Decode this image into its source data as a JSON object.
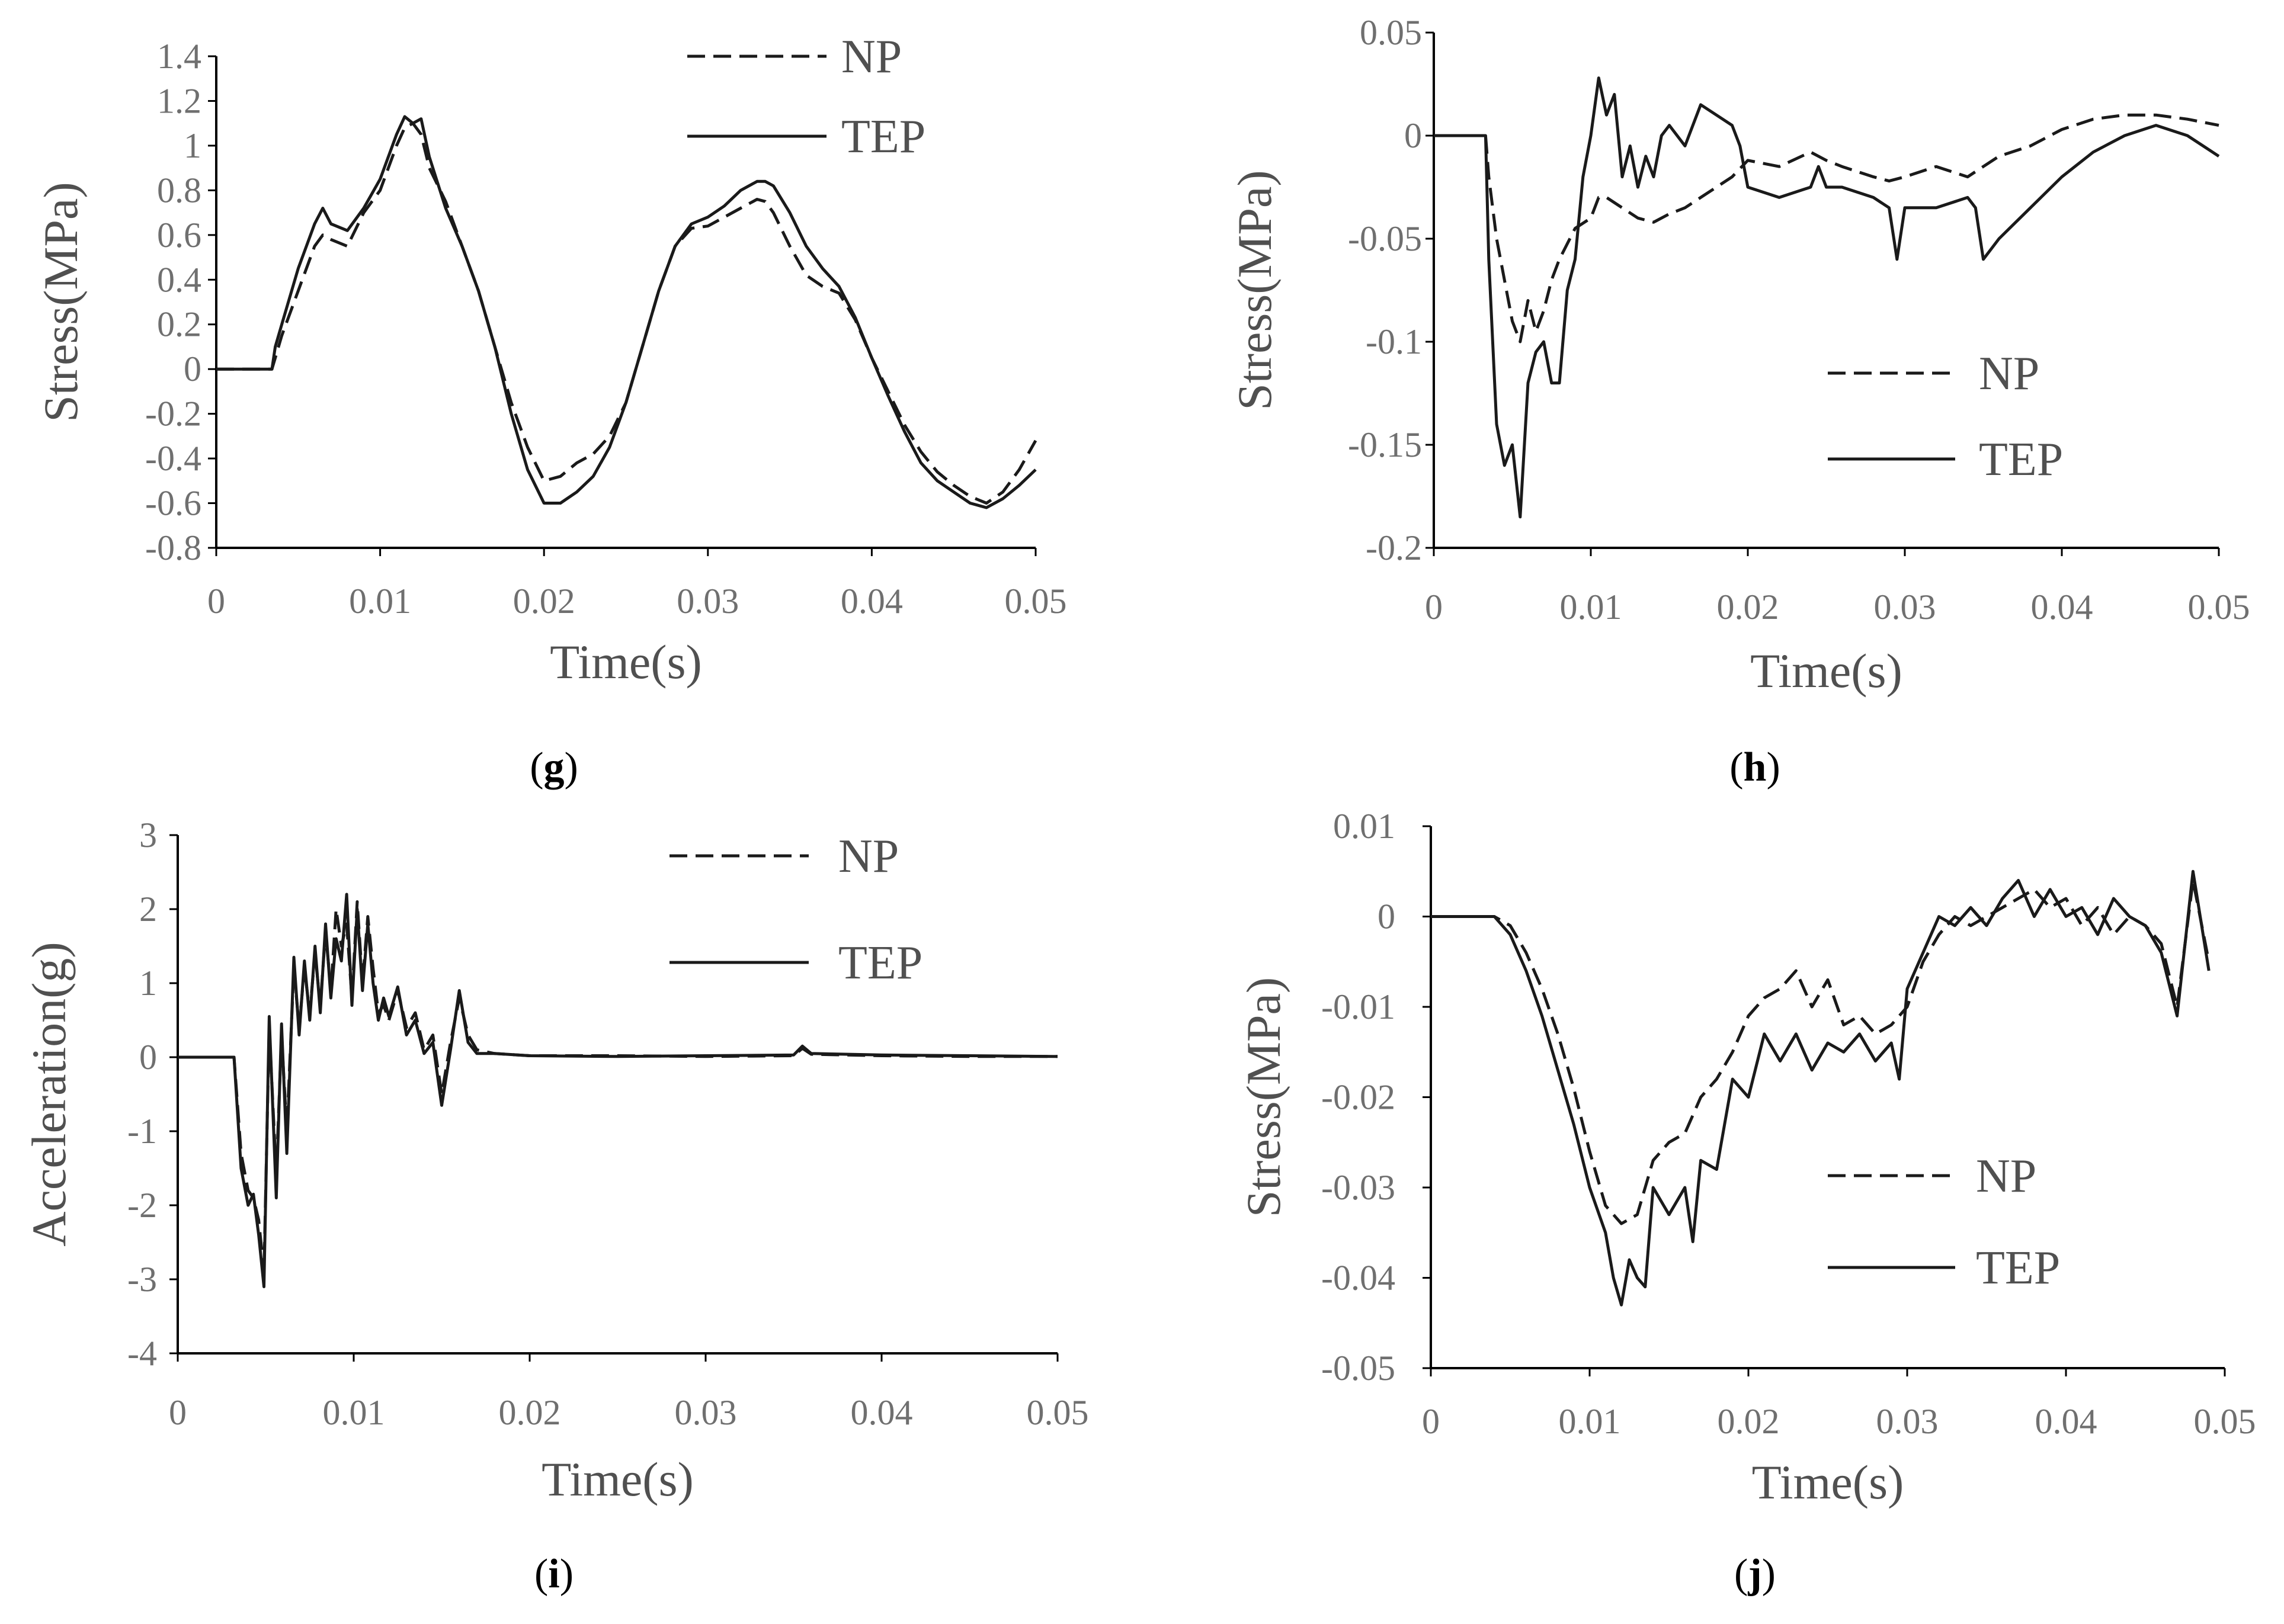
{
  "chart_data": [
    {
      "type": "line",
      "panel": "g",
      "xlabel": "Time(s)",
      "ylabel": "Stress(MPa)",
      "xlim": [
        0,
        0.05
      ],
      "ylim": [
        -0.8,
        1.4
      ],
      "xticks": [
        "0",
        "0.01",
        "0.02",
        "0.03",
        "0.04",
        "0.05"
      ],
      "yticks": [
        "1.4",
        "1.2",
        "1",
        "0.8",
        "0.6",
        "0.4",
        "0.2",
        "0",
        "-0.2",
        "-0.4",
        "-0.6",
        "-0.8"
      ],
      "legend": "top-center",
      "series": [
        {
          "name": "NP",
          "style": "dashed",
          "x": [
            0,
            0.0034,
            0.0036,
            0.004,
            0.005,
            0.006,
            0.0065,
            0.007,
            0.008,
            0.009,
            0.01,
            0.011,
            0.0115,
            0.012,
            0.0125,
            0.013,
            0.014,
            0.015,
            0.016,
            0.017,
            0.018,
            0.019,
            0.02,
            0.021,
            0.022,
            0.023,
            0.024,
            0.025,
            0.026,
            0.027,
            0.028,
            0.029,
            0.03,
            0.031,
            0.032,
            0.033,
            0.0335,
            0.034,
            0.035,
            0.036,
            0.037,
            0.038,
            0.039,
            0.04,
            0.041,
            0.042,
            0.043,
            0.044,
            0.045,
            0.046,
            0.047,
            0.048,
            0.049,
            0.05
          ],
          "y": [
            0,
            0,
            0.05,
            0.15,
            0.35,
            0.55,
            0.6,
            0.58,
            0.55,
            0.7,
            0.8,
            1.0,
            1.08,
            1.1,
            1.05,
            0.9,
            0.75,
            0.55,
            0.35,
            0.1,
            -0.15,
            -0.35,
            -0.5,
            -0.48,
            -0.42,
            -0.38,
            -0.3,
            -0.15,
            0.1,
            0.35,
            0.55,
            0.63,
            0.64,
            0.68,
            0.72,
            0.76,
            0.75,
            0.7,
            0.55,
            0.42,
            0.37,
            0.34,
            0.22,
            0.05,
            -0.1,
            -0.25,
            -0.37,
            -0.46,
            -0.52,
            -0.57,
            -0.6,
            -0.55,
            -0.45,
            -0.32
          ]
        },
        {
          "name": "TEP",
          "style": "solid",
          "x": [
            0,
            0.0034,
            0.0036,
            0.004,
            0.005,
            0.006,
            0.0065,
            0.007,
            0.008,
            0.009,
            0.01,
            0.011,
            0.0115,
            0.012,
            0.0125,
            0.013,
            0.014,
            0.015,
            0.016,
            0.017,
            0.018,
            0.019,
            0.02,
            0.021,
            0.022,
            0.023,
            0.024,
            0.025,
            0.026,
            0.027,
            0.028,
            0.029,
            0.03,
            0.031,
            0.032,
            0.033,
            0.0335,
            0.034,
            0.035,
            0.036,
            0.037,
            0.038,
            0.039,
            0.04,
            0.041,
            0.042,
            0.043,
            0.044,
            0.045,
            0.046,
            0.047,
            0.048,
            0.049,
            0.05
          ],
          "y": [
            0,
            0,
            0.1,
            0.2,
            0.45,
            0.65,
            0.72,
            0.65,
            0.62,
            0.72,
            0.85,
            1.05,
            1.13,
            1.1,
            1.12,
            0.95,
            0.72,
            0.55,
            0.35,
            0.1,
            -0.2,
            -0.45,
            -0.6,
            -0.6,
            -0.55,
            -0.48,
            -0.35,
            -0.15,
            0.1,
            0.35,
            0.55,
            0.65,
            0.68,
            0.73,
            0.8,
            0.84,
            0.84,
            0.82,
            0.7,
            0.55,
            0.45,
            0.37,
            0.23,
            0.05,
            -0.12,
            -0.28,
            -0.42,
            -0.5,
            -0.55,
            -0.6,
            -0.62,
            -0.58,
            -0.52,
            -0.45
          ]
        }
      ]
    },
    {
      "type": "line",
      "panel": "h",
      "xlabel": "Time(s)",
      "ylabel": "Stress(MPa)",
      "xlim": [
        0,
        0.05
      ],
      "ylim": [
        -0.2,
        0.05
      ],
      "xticks": [
        "0",
        "0.01",
        "0.02",
        "0.03",
        "0.04",
        "0.05"
      ],
      "yticks": [
        "0.05",
        "0",
        "-0.05",
        "-0.1",
        "-0.15",
        "-0.2"
      ],
      "legend": "middle-right",
      "series": [
        {
          "name": "NP",
          "style": "dashed",
          "x": [
            0,
            0.0033,
            0.0035,
            0.004,
            0.005,
            0.0055,
            0.006,
            0.0065,
            0.007,
            0.0075,
            0.008,
            0.009,
            0.01,
            0.0105,
            0.011,
            0.012,
            0.013,
            0.014,
            0.015,
            0.016,
            0.017,
            0.018,
            0.019,
            0.02,
            0.022,
            0.024,
            0.025,
            0.026,
            0.028,
            0.029,
            0.03,
            0.032,
            0.034,
            0.036,
            0.038,
            0.04,
            0.042,
            0.044,
            0.046,
            0.048,
            0.05
          ],
          "y": [
            0,
            0,
            -0.02,
            -0.05,
            -0.09,
            -0.1,
            -0.08,
            -0.095,
            -0.085,
            -0.07,
            -0.06,
            -0.045,
            -0.04,
            -0.03,
            -0.03,
            -0.035,
            -0.04,
            -0.042,
            -0.038,
            -0.035,
            -0.03,
            -0.025,
            -0.02,
            -0.012,
            -0.015,
            -0.008,
            -0.012,
            -0.015,
            -0.02,
            -0.022,
            -0.02,
            -0.015,
            -0.02,
            -0.01,
            -0.005,
            0.003,
            0.008,
            0.01,
            0.01,
            0.008,
            0.005
          ]
        },
        {
          "name": "TEP",
          "style": "solid",
          "x": [
            0,
            0.0033,
            0.0035,
            0.004,
            0.0045,
            0.005,
            0.0055,
            0.006,
            0.0065,
            0.007,
            0.0075,
            0.008,
            0.0085,
            0.009,
            0.0095,
            0.01,
            0.0105,
            0.011,
            0.0115,
            0.012,
            0.0125,
            0.013,
            0.0135,
            0.014,
            0.0145,
            0.015,
            0.016,
            0.017,
            0.018,
            0.019,
            0.0195,
            0.02,
            0.022,
            0.024,
            0.0245,
            0.025,
            0.026,
            0.028,
            0.029,
            0.0295,
            0.03,
            0.032,
            0.034,
            0.0345,
            0.035,
            0.0355,
            0.036,
            0.038,
            0.04,
            0.042,
            0.044,
            0.046,
            0.048,
            0.049,
            0.05
          ],
          "y": [
            0,
            0,
            -0.06,
            -0.14,
            -0.16,
            -0.15,
            -0.185,
            -0.12,
            -0.105,
            -0.1,
            -0.12,
            -0.12,
            -0.075,
            -0.06,
            -0.02,
            0,
            0.028,
            0.01,
            0.02,
            -0.02,
            -0.005,
            -0.025,
            -0.01,
            -0.02,
            0,
            0.005,
            -0.005,
            0.015,
            0.01,
            0.005,
            -0.005,
            -0.025,
            -0.03,
            -0.025,
            -0.015,
            -0.025,
            -0.025,
            -0.03,
            -0.035,
            -0.06,
            -0.035,
            -0.035,
            -0.03,
            -0.035,
            -0.06,
            -0.055,
            -0.05,
            -0.035,
            -0.02,
            -0.008,
            0,
            0.005,
            0,
            -0.005,
            -0.01
          ]
        }
      ]
    },
    {
      "type": "line",
      "panel": "i",
      "xlabel": "Time(s)",
      "ylabel": "Acceleration(g)",
      "xlim": [
        0,
        0.05
      ],
      "ylim": [
        -4,
        3
      ],
      "xticks": [
        "0",
        "0.01",
        "0.02",
        "0.03",
        "0.04",
        "0.05"
      ],
      "yticks": [
        "3",
        "2",
        "1",
        "0",
        "-1",
        "-2",
        "-3",
        "-4"
      ],
      "legend": "top-right",
      "series": [
        {
          "name": "NP",
          "style": "dashed",
          "x": [
            0,
            0.0032,
            0.0036,
            0.004,
            0.0043,
            0.0046,
            0.0049,
            0.0052,
            0.0056,
            0.0059,
            0.0062,
            0.0066,
            0.0069,
            0.0072,
            0.0075,
            0.0078,
            0.0081,
            0.0084,
            0.0087,
            0.009,
            0.0093,
            0.0096,
            0.0099,
            0.0102,
            0.0105,
            0.0108,
            0.0111,
            0.0114,
            0.0117,
            0.012,
            0.0125,
            0.013,
            0.0135,
            0.014,
            0.0145,
            0.015,
            0.0155,
            0.016,
            0.0165,
            0.017,
            0.018,
            0.02,
            0.025,
            0.03,
            0.035,
            0.0355,
            0.036,
            0.04,
            0.045,
            0.05
          ],
          "y": [
            0,
            0,
            -1.3,
            -1.8,
            -1.9,
            -2.2,
            -2.9,
            0.4,
            -1.6,
            0.3,
            -1.0,
            1.2,
            0.4,
            1.2,
            0.6,
            1.4,
            0.7,
            1.7,
            0.9,
            2.0,
            1.5,
            1.8,
            0.8,
            2.1,
            1.0,
            1.9,
            1.2,
            0.6,
            0.7,
            0.5,
            0.9,
            0.4,
            0.6,
            0.1,
            0.3,
            -0.5,
            0.2,
            0.8,
            0.3,
            0.1,
            0.05,
            0.02,
            0.02,
            0.01,
            0.02,
            0.12,
            0.04,
            0.02,
            0.01,
            0.01
          ]
        },
        {
          "name": "TEP",
          "style": "solid",
          "x": [
            0,
            0.0032,
            0.0036,
            0.004,
            0.0043,
            0.0046,
            0.0049,
            0.0052,
            0.0056,
            0.0059,
            0.0062,
            0.0066,
            0.0069,
            0.0072,
            0.0075,
            0.0078,
            0.0081,
            0.0084,
            0.0087,
            0.009,
            0.0093,
            0.0096,
            0.0099,
            0.0102,
            0.0105,
            0.0108,
            0.0111,
            0.0114,
            0.0117,
            0.012,
            0.0125,
            0.013,
            0.0135,
            0.014,
            0.0145,
            0.015,
            0.0155,
            0.016,
            0.0165,
            0.017,
            0.018,
            0.02,
            0.025,
            0.03,
            0.035,
            0.0355,
            0.036,
            0.04,
            0.045,
            0.05
          ],
          "y": [
            0,
            0,
            -1.5,
            -2.0,
            -1.85,
            -2.4,
            -3.1,
            0.55,
            -1.9,
            0.45,
            -1.3,
            1.35,
            0.3,
            1.3,
            0.5,
            1.5,
            0.6,
            1.8,
            0.8,
            1.6,
            1.3,
            2.2,
            0.7,
            2.0,
            0.9,
            1.8,
            1.0,
            0.5,
            0.8,
            0.55,
            0.95,
            0.3,
            0.5,
            0.05,
            0.2,
            -0.65,
            0.1,
            0.9,
            0.2,
            0.05,
            0.05,
            0.02,
            0.01,
            0.02,
            0.03,
            0.15,
            0.05,
            0.03,
            0.02,
            0.01
          ]
        }
      ]
    },
    {
      "type": "line",
      "panel": "j",
      "xlabel": "Time(s)",
      "ylabel": "Stress(MPa)",
      "xlim": [
        0,
        0.05
      ],
      "ylim": [
        -0.05,
        0.01
      ],
      "xticks": [
        "0",
        "0.01",
        "0.02",
        "0.03",
        "0.04",
        "0.05"
      ],
      "yticks": [
        "0.01",
        "0",
        "-0.01",
        "-0.02",
        "-0.03",
        "-0.04",
        "-0.05"
      ],
      "legend": "middle-right",
      "series": [
        {
          "name": "NP",
          "style": "dashed",
          "x": [
            0,
            0.002,
            0.004,
            0.005,
            0.006,
            0.007,
            0.008,
            0.009,
            0.01,
            0.011,
            0.012,
            0.013,
            0.014,
            0.015,
            0.016,
            0.017,
            0.018,
            0.019,
            0.02,
            0.021,
            0.022,
            0.023,
            0.024,
            0.025,
            0.026,
            0.027,
            0.028,
            0.029,
            0.03,
            0.031,
            0.032,
            0.033,
            0.034,
            0.035,
            0.036,
            0.037,
            0.038,
            0.039,
            0.04,
            0.041,
            0.042,
            0.043,
            0.044,
            0.045,
            0.046,
            0.047,
            0.048,
            0.049
          ],
          "y": [
            0,
            0,
            0,
            -0.001,
            -0.004,
            -0.008,
            -0.013,
            -0.019,
            -0.026,
            -0.032,
            -0.034,
            -0.033,
            -0.027,
            -0.025,
            -0.024,
            -0.02,
            -0.018,
            -0.015,
            -0.011,
            -0.009,
            -0.008,
            -0.006,
            -0.01,
            -0.007,
            -0.012,
            -0.011,
            -0.013,
            -0.012,
            -0.01,
            -0.005,
            -0.002,
            0,
            -0.001,
            0,
            0.001,
            0.002,
            0.003,
            0.001,
            0.002,
            -0.001,
            0.001,
            -0.002,
            0,
            -0.001,
            -0.003,
            -0.01,
            0.004,
            -0.005
          ]
        },
        {
          "name": "TEP",
          "style": "solid",
          "x": [
            0,
            0.002,
            0.004,
            0.005,
            0.006,
            0.007,
            0.008,
            0.009,
            0.01,
            0.011,
            0.0115,
            0.012,
            0.0125,
            0.013,
            0.0135,
            0.014,
            0.015,
            0.016,
            0.0165,
            0.017,
            0.018,
            0.019,
            0.02,
            0.021,
            0.022,
            0.023,
            0.024,
            0.025,
            0.026,
            0.027,
            0.028,
            0.029,
            0.0295,
            0.03,
            0.031,
            0.032,
            0.033,
            0.034,
            0.035,
            0.036,
            0.037,
            0.038,
            0.039,
            0.04,
            0.041,
            0.042,
            0.043,
            0.044,
            0.045,
            0.046,
            0.047,
            0.048,
            0.049
          ],
          "y": [
            0,
            0,
            0,
            -0.002,
            -0.006,
            -0.011,
            -0.017,
            -0.023,
            -0.03,
            -0.035,
            -0.04,
            -0.043,
            -0.038,
            -0.04,
            -0.041,
            -0.03,
            -0.033,
            -0.03,
            -0.036,
            -0.027,
            -0.028,
            -0.018,
            -0.02,
            -0.013,
            -0.016,
            -0.013,
            -0.017,
            -0.014,
            -0.015,
            -0.013,
            -0.016,
            -0.014,
            -0.018,
            -0.008,
            -0.004,
            0,
            -0.001,
            0.001,
            -0.001,
            0.002,
            0.004,
            0,
            0.003,
            0,
            0.001,
            -0.002,
            0.002,
            0,
            -0.001,
            -0.004,
            -0.011,
            0.005,
            -0.006
          ]
        }
      ]
    }
  ],
  "panels": [
    {
      "label": "(g)",
      "prefix": "(",
      "letter": "g",
      "suffix": ")"
    },
    {
      "label": "(h)",
      "prefix": "(",
      "letter": "h",
      "suffix": ")"
    },
    {
      "label": "(i)",
      "prefix": "(",
      "letter": "i",
      "suffix": ")"
    },
    {
      "label": "(j)",
      "prefix": "(",
      "letter": "j",
      "suffix": ")"
    }
  ],
  "colors": {
    "line": "#1a1a1a",
    "axis": "#000000",
    "text": "#6f6f6f"
  }
}
